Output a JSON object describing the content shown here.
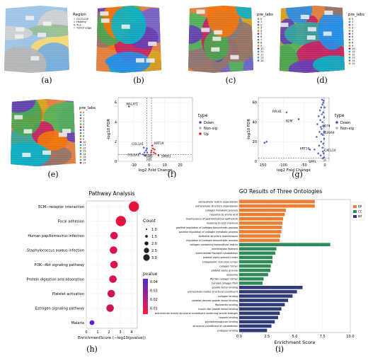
{
  "captions": [
    "(a)",
    "(b)",
    "(c)",
    "(d)",
    "(e)",
    "(f)",
    "(g)",
    "(h)",
    "(i)"
  ],
  "colors": {
    "spatial_palette": [
      "#e07b39",
      "#2aa198",
      "#6a5acd",
      "#d4a017",
      "#4caf50",
      "#c2185b",
      "#1e88e5",
      "#8d6e63",
      "#43a047",
      "#ef6c00",
      "#5e35b1",
      "#00acc1"
    ],
    "down": "#3b4cc0",
    "nonsig": "#b0b0b0",
    "up": "#d7191c",
    "bp": "#ed7d31",
    "cc": "#2e8b57",
    "mf": "#2f3a7a"
  },
  "panel_a": {
    "legend_title": "Region",
    "legend_items": [
      "GC/CLG/E",
      "Healthy",
      "TLS",
      "Tumor edge"
    ],
    "legend_colors": [
      "#f5d76e",
      "#9cc3e6",
      "#8fbc8f",
      "#cfcfcf"
    ]
  },
  "pre_labs": {
    "legend_title": "pre_labs",
    "labels_c": [
      "0",
      "1",
      "2",
      "3",
      "4",
      "5",
      "6",
      "7",
      "8",
      "9",
      "10",
      "11",
      "12",
      "13",
      "14"
    ],
    "labels_d": [
      "0",
      "1",
      "2",
      "3",
      "4",
      "5",
      "6",
      "7",
      "8",
      "9",
      "10",
      "11",
      "12",
      "13",
      "14",
      "15"
    ],
    "labels_e": [
      "0",
      "1",
      "2",
      "3",
      "4",
      "5",
      "6",
      "7",
      "8",
      "9",
      "10",
      "11",
      "12",
      "13",
      "14",
      "15",
      "16",
      "17"
    ]
  },
  "chart_data": [
    {
      "panel": "f",
      "type": "scatter",
      "xlabel": "log2 Fold Change",
      "ylabel": "-log10 FDR",
      "xlim": [
        -20,
        28
      ],
      "ylim": [
        0,
        6.5
      ],
      "xticks": [
        "-10",
        "0",
        "10",
        "20"
      ],
      "yticks": [
        "0",
        "2",
        "4",
        "6"
      ],
      "legend_title": "type",
      "legend_entries": [
        "Down",
        "Non-sig",
        "Up"
      ],
      "annotations": [
        "MALAT1",
        "COL1A1",
        "COL5A1",
        "ACTA1",
        "KRT19",
        "SPRR3"
      ],
      "points": {
        "down": [
          [
            -13,
            5.6
          ],
          [
            -3,
            0.9
          ],
          [
            -2,
            1.1
          ],
          [
            -4,
            0.7
          ],
          [
            -1.5,
            1.3
          ],
          [
            -2.5,
            0.6
          ],
          [
            -6,
            0.8
          ],
          [
            -1.2,
            0.9
          ],
          [
            -3.5,
            1.4
          ]
        ],
        "nonsig": [
          [
            -0.5,
            0.2
          ],
          [
            0.3,
            0.3
          ],
          [
            -0.8,
            0.5
          ],
          [
            0.6,
            0.15
          ],
          [
            -0.2,
            0.4
          ],
          [
            1,
            0.3
          ],
          [
            -1,
            0.2
          ],
          [
            0.5,
            0.6
          ],
          [
            0,
            0.1
          ],
          [
            0.8,
            0.45
          ]
        ],
        "up": [
          [
            2,
            1.6
          ],
          [
            3,
            0.9
          ],
          [
            1.5,
            1.1
          ],
          [
            4,
            0.8
          ],
          [
            2.5,
            1.3
          ],
          [
            6,
            0.6
          ],
          [
            1.3,
            0.9
          ],
          [
            3.5,
            1.2
          ]
        ]
      }
    },
    {
      "panel": "g",
      "type": "scatter",
      "xlabel": "log2 Fold Change",
      "ylabel": "-log10 FDR",
      "xlim": [
        -160,
        10
      ],
      "ylim": [
        0,
        65
      ],
      "xticks": [
        "-150",
        "-100",
        "-50",
        "0"
      ],
      "yticks": [
        "0",
        "20",
        "40",
        "60"
      ],
      "legend_title": "type",
      "legend_entries": [
        "Down",
        "Non-sig"
      ],
      "annotations": [
        "RPL41",
        "B2M",
        "CD74",
        "S100A9",
        "KRT14",
        "CXCL14",
        "SPP1"
      ],
      "points": {
        "down": [
          [
            -92,
            50
          ],
          [
            -63,
            43
          ],
          [
            -10,
            35
          ],
          [
            -8,
            28
          ],
          [
            -36,
            12
          ],
          [
            -5,
            10
          ],
          [
            -5,
            3
          ],
          [
            -3,
            62
          ],
          [
            -6,
            58
          ],
          [
            -9,
            55
          ],
          [
            -12,
            52
          ],
          [
            -4,
            50
          ],
          [
            -7,
            48
          ],
          [
            -15,
            46
          ],
          [
            -2,
            45
          ],
          [
            -11,
            42
          ],
          [
            -6,
            40
          ],
          [
            -18,
            38
          ],
          [
            -3,
            36
          ],
          [
            -8,
            33
          ],
          [
            -13,
            30
          ],
          [
            -5,
            27
          ],
          [
            -20,
            25
          ],
          [
            -2,
            23
          ],
          [
            -9,
            20
          ],
          [
            -4,
            18
          ],
          [
            -14,
            16
          ],
          [
            -6,
            14
          ],
          [
            -25,
            12
          ],
          [
            -3,
            8
          ],
          [
            -10,
            6
          ],
          [
            -140,
            20
          ],
          [
            -145,
            19
          ],
          [
            -2,
            4
          ],
          [
            -1,
            55
          ],
          [
            -4,
            60
          ],
          [
            -7,
            63
          ],
          [
            -1,
            30
          ],
          [
            -16,
            8
          ]
        ],
        "nonsig": [
          [
            -1,
            1
          ],
          [
            0,
            1.5
          ],
          [
            -2,
            0.8
          ],
          [
            1,
            1.2
          ]
        ]
      }
    },
    {
      "panel": "h",
      "type": "scatter",
      "title": "Pathway Analysis",
      "xlabel": "EnrichmentScore (−log10(pvalue))",
      "xlim": [
        0,
        4.5
      ],
      "xticks": [
        "0",
        "1",
        "2",
        "3",
        "4"
      ],
      "categories": [
        "ECM−receptor interaction",
        "Focal adhesion",
        "Human papillomavirus infection",
        "Staphylococcus aureus infection",
        "PI3K−Akt signaling pathway",
        "Protein digestion and absorption",
        "Platelet activation",
        "Estrogen signaling pathway",
        "Malaria"
      ],
      "values": [
        4.2,
        3.05,
        2.45,
        2.4,
        2.45,
        2.35,
        2.2,
        2.1,
        0.5
      ],
      "counts": [
        3,
        3,
        2,
        2,
        2,
        2,
        2,
        2,
        1
      ],
      "pvalues": [
        0.0001,
        0.001,
        0.004,
        0.004,
        0.004,
        0.0045,
        0.007,
        0.008,
        0.04
      ],
      "legend_count_title": "Count",
      "count_levels": [
        "1.0",
        "1.5",
        "2.0",
        "2.5",
        "3.0"
      ],
      "legend_p_title": "pvalue",
      "p_ticks": [
        "0.04",
        "0.03",
        "0.02",
        "0.01"
      ]
    },
    {
      "panel": "i",
      "type": "bar",
      "title": "GO Results of Three Ontologies",
      "xlabel": "Enrichment Score",
      "xlim": [
        0,
        10
      ],
      "xticks": [
        "0.0",
        "2.5",
        "5.0",
        "7.5",
        "10.0"
      ],
      "legend_entries": [
        "BP",
        "CC",
        "MF"
      ],
      "categories": [
        "extracellular matrix organization",
        "extracellular structure organization",
        "collagen metabolic process",
        "response to amino acid",
        "maintenance of gastrointestinal epithelium",
        "response to acid chemical",
        "positive regulation of collagen biosynthetic process",
        "positive regulation of collagen metabolic process",
        "epithelial structure maintenance",
        "regulation of collagen biosynthetic process",
        "collagen-containing extracellular matrix",
        "intermediate filament",
        "intermediate filament cytoskeleton",
        "platelet alpha granule lumen",
        "endoplasmic reticulum lumen",
        "collagen trimer",
        "platelet alpha granule",
        "lysosome",
        "fibrillar collagen trimer",
        "banded collagen fibril",
        "growth factor binding",
        "extracellular matrix structural constituent",
        "collagen binding",
        "platelet-derived growth factor binding",
        "fibronectin binding",
        "insulin-like growth factor binding",
        "extracellular matrix structural constituent conferring tensile strength",
        "heparin binding",
        "glycosaminoglycan binding",
        "structural constituent of cytoskeleton",
        "protease binding"
      ],
      "values": [
        6.8,
        6.8,
        4.2,
        4.1,
        3.95,
        3.9,
        3.85,
        3.8,
        3.7,
        3.65,
        8.2,
        3.35,
        3.25,
        3.0,
        3.0,
        2.85,
        2.8,
        2.6,
        2.2,
        2.1,
        5.7,
        5.2,
        4.8,
        4.4,
        4.1,
        3.8,
        3.65,
        3.5,
        3.2,
        2.9,
        2.5
      ],
      "groups": [
        "BP",
        "BP",
        "BP",
        "BP",
        "BP",
        "BP",
        "BP",
        "BP",
        "BP",
        "BP",
        "CC",
        "CC",
        "CC",
        "CC",
        "CC",
        "CC",
        "CC",
        "CC",
        "CC",
        "CC",
        "MF",
        "MF",
        "MF",
        "MF",
        "MF",
        "MF",
        "MF",
        "MF",
        "MF",
        "MF",
        "MF"
      ]
    }
  ]
}
